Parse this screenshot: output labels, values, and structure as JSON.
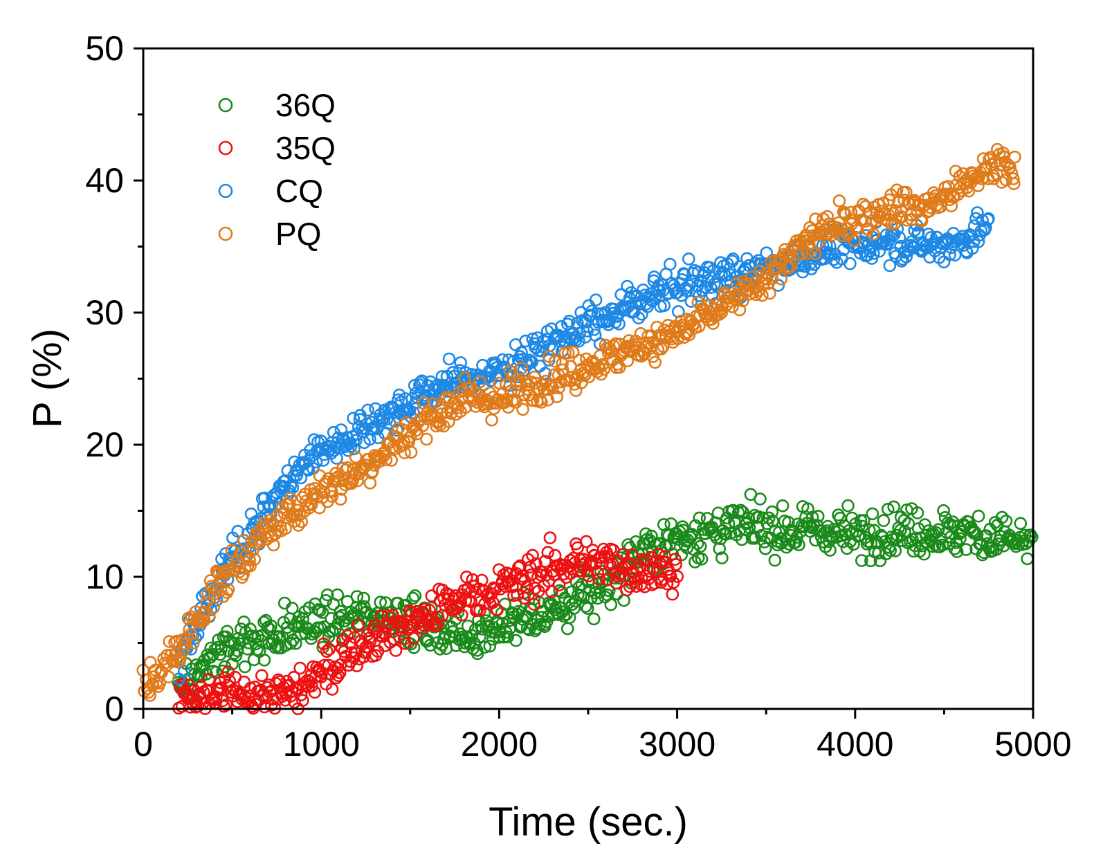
{
  "chart_data": {
    "type": "scatter",
    "title": "",
    "xlabel": "Time (sec.)",
    "ylabel": "P (%)",
    "xlim": [
      0,
      5000
    ],
    "ylim": [
      0,
      50
    ],
    "xticks": [
      0,
      1000,
      2000,
      3000,
      4000,
      5000
    ],
    "yticks": [
      0,
      10,
      20,
      30,
      40,
      50
    ],
    "legend_position": "top-left",
    "series": [
      {
        "name": "36Q",
        "color": "#1a8a1a",
        "x": [
          200,
          400,
          600,
          800,
          1000,
          1200,
          1400,
          1600,
          1800,
          2000,
          2200,
          2400,
          2600,
          2800,
          3000,
          3200,
          3400,
          3600,
          3800,
          4000,
          4200,
          4400,
          4600,
          4800,
          5000
        ],
        "y": [
          1.5,
          3.8,
          5.3,
          5.8,
          6.5,
          7.0,
          7.3,
          6.0,
          5.5,
          6.3,
          7.0,
          8.0,
          9.5,
          12.0,
          13.0,
          13.3,
          13.8,
          13.5,
          13.5,
          13.2,
          13.5,
          13.3,
          13.3,
          13.0,
          12.5
        ]
      },
      {
        "name": "35Q",
        "color": "#ee1111",
        "x": [
          200,
          400,
          600,
          800,
          1000,
          1200,
          1400,
          1600,
          1800,
          2000,
          2200,
          2400,
          2600,
          2800,
          3000
        ],
        "y": [
          0.5,
          1.0,
          1.2,
          1.0,
          2.5,
          5.0,
          6.0,
          7.0,
          8.5,
          9.0,
          10.0,
          11.0,
          11.0,
          10.5,
          10.5
        ]
      },
      {
        "name": "CQ",
        "color": "#1e88e5",
        "x": [
          200,
          400,
          600,
          800,
          1000,
          1200,
          1400,
          1600,
          1800,
          2000,
          2200,
          2400,
          2600,
          2800,
          3000,
          3200,
          3400,
          3600,
          3800,
          4000,
          4200,
          4400,
          4600,
          4750
        ],
        "y": [
          3.5,
          9.0,
          13.5,
          17.0,
          19.5,
          21.0,
          22.5,
          24.0,
          25.0,
          25.5,
          27.0,
          28.5,
          29.5,
          31.0,
          32.0,
          32.5,
          33.0,
          33.8,
          34.5,
          35.0,
          35.5,
          35.0,
          35.5,
          36.5
        ]
      },
      {
        "name": "PQ",
        "color": "#e07b1a",
        "x": [
          0,
          200,
          400,
          600,
          800,
          1000,
          1200,
          1400,
          1600,
          1800,
          2000,
          2200,
          2400,
          2600,
          2800,
          3000,
          3200,
          3400,
          3600,
          3800,
          4000,
          4200,
          4400,
          4600,
          4800,
          4900
        ],
        "y": [
          1.5,
          4.5,
          9.0,
          12.0,
          14.5,
          16.5,
          18.0,
          20.0,
          22.0,
          23.5,
          23.5,
          24.5,
          25.5,
          26.5,
          27.5,
          28.5,
          30.0,
          31.5,
          34.0,
          36.0,
          37.0,
          38.0,
          38.0,
          39.5,
          41.5,
          41.0
        ]
      }
    ]
  }
}
